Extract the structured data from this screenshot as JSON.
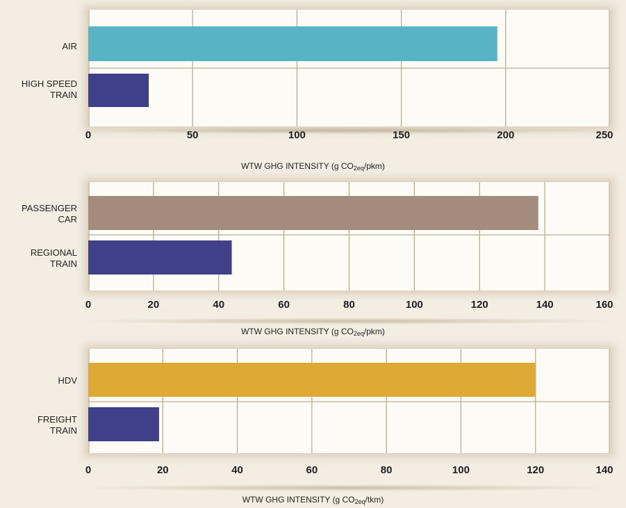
{
  "charts": [
    {
      "type": "bar",
      "orientation": "horizontal",
      "categories": [
        "AIR",
        "HIGH SPEED\nTRAIN"
      ],
      "values": [
        196,
        29
      ],
      "colors": [
        "#59b3c7",
        "#3f3f8a"
      ],
      "xlim": [
        0,
        250
      ],
      "ticks": [
        0,
        50,
        100,
        150,
        200,
        250
      ],
      "tick_labels": [
        "0",
        "50",
        "100",
        "150",
        "200",
        "250"
      ],
      "xlabel": {
        "prefix": "WTW GHG INTENSITY (g CO",
        "sub": "2eq",
        "suffix": "/pkm)"
      }
    },
    {
      "type": "bar",
      "orientation": "horizontal",
      "categories": [
        "PASSENGER\nCAR",
        "REGIONAL\nTRAIN"
      ],
      "values": [
        138,
        44
      ],
      "colors": [
        "#a48c7d",
        "#3f3f8a"
      ],
      "xlim": [
        0,
        160
      ],
      "ticks": [
        0,
        20,
        40,
        60,
        80,
        100,
        120,
        140,
        160
      ],
      "tick_labels": [
        "0",
        "20",
        "40",
        "60",
        "80",
        "100",
        "120",
        "140",
        "160"
      ],
      "xlabel": {
        "prefix": "WTW GHG INTENSITY (g CO",
        "sub": "2eq",
        "suffix": "/pkm)"
      }
    },
    {
      "type": "bar",
      "orientation": "horizontal",
      "categories": [
        "HDV",
        "FREIGHT\nTRAIN"
      ],
      "values": [
        120,
        19
      ],
      "colors": [
        "#dfaa33",
        "#3f3f8a"
      ],
      "xlim": [
        0,
        140
      ],
      "ticks": [
        0,
        20,
        40,
        60,
        80,
        100,
        120,
        140
      ],
      "tick_labels": [
        "0",
        "20",
        "40",
        "60",
        "80",
        "100",
        "120",
        "140"
      ],
      "xlabel": {
        "prefix": "WTW GHG INTENSITY (g CO",
        "sub": "2eq",
        "suffix": "/tkm)"
      }
    }
  ]
}
